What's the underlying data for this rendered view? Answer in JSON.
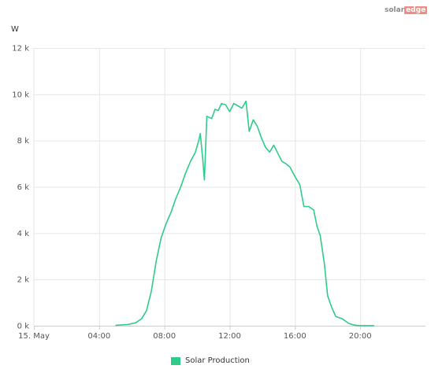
{
  "brand": {
    "word1": "solar",
    "word2": "edge"
  },
  "chart_data": {
    "type": "line",
    "ylabel": "W",
    "ylim": [
      0,
      12000
    ],
    "y_ticks": [
      {
        "value": 0,
        "label": "0 k"
      },
      {
        "value": 2000,
        "label": "2 k"
      },
      {
        "value": 4000,
        "label": "4 k"
      },
      {
        "value": 6000,
        "label": "6 k"
      },
      {
        "value": 8000,
        "label": "8 k"
      },
      {
        "value": 10000,
        "label": "10 k"
      },
      {
        "value": 12000,
        "label": "12 k"
      }
    ],
    "xlim": [
      0,
      24
    ],
    "x_ticks": [
      {
        "value": 0,
        "label": "15. May"
      },
      {
        "value": 4,
        "label": "04:00"
      },
      {
        "value": 8,
        "label": "08:00"
      },
      {
        "value": 12,
        "label": "12:00"
      },
      {
        "value": 16,
        "label": "16:00"
      },
      {
        "value": 20,
        "label": "20:00"
      }
    ],
    "grid": true,
    "legend_position": "bottom-center",
    "series": [
      {
        "name": "Solar Production",
        "color": "#2ecc8a",
        "x": [
          5.0,
          5.75,
          6.25,
          6.6,
          6.9,
          7.2,
          7.5,
          7.8,
          8.1,
          8.4,
          8.7,
          9.0,
          9.3,
          9.6,
          9.9,
          10.1,
          10.2,
          10.35,
          10.45,
          10.6,
          10.9,
          11.1,
          11.3,
          11.5,
          11.75,
          12.0,
          12.25,
          12.5,
          12.75,
          13.0,
          13.2,
          13.45,
          13.7,
          13.95,
          14.2,
          14.45,
          14.7,
          14.95,
          15.2,
          15.45,
          15.7,
          16.0,
          16.3,
          16.55,
          16.85,
          17.15,
          17.35,
          17.55,
          17.8,
          18.0,
          18.25,
          18.5,
          18.7,
          18.9,
          19.1,
          19.3,
          19.55,
          19.8,
          20.05,
          20.3,
          20.6,
          20.85
        ],
        "y": [
          20,
          50,
          130,
          300,
          650,
          1500,
          2800,
          3800,
          4400,
          4900,
          5500,
          6000,
          6600,
          7100,
          7500,
          8000,
          8300,
          7200,
          6300,
          9050,
          8950,
          9350,
          9300,
          9600,
          9550,
          9250,
          9600,
          9500,
          9400,
          9700,
          8400,
          8900,
          8600,
          8100,
          7700,
          7500,
          7800,
          7450,
          7100,
          7000,
          6850,
          6450,
          6100,
          5150,
          5150,
          5000,
          4300,
          3900,
          2700,
          1300,
          800,
          400,
          350,
          300,
          200,
          100,
          40,
          10,
          5,
          5,
          5,
          5
        ]
      }
    ]
  }
}
